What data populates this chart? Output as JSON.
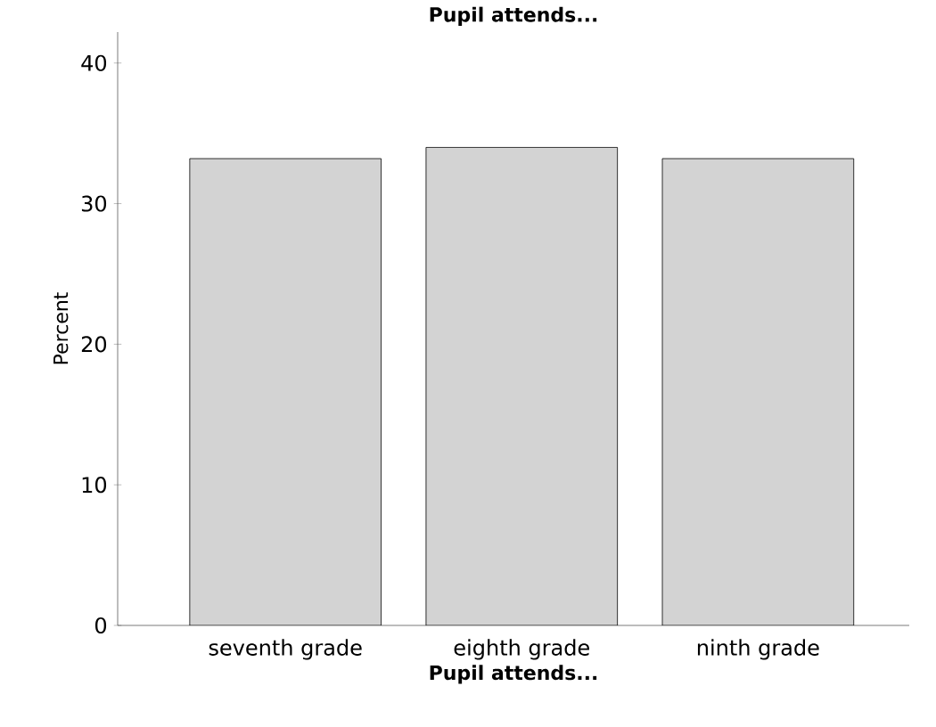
{
  "chart_data": {
    "type": "bar",
    "title": "Pupil attends...",
    "xlabel": "Pupil attends...",
    "ylabel": "Percent",
    "categories": [
      "seventh grade",
      "eighth grade",
      "ninth grade"
    ],
    "values": [
      33.2,
      34.0,
      33.2
    ],
    "color": "#d3d3d3",
    "ylim": [
      0,
      42.2
    ],
    "yticks": [
      0,
      10,
      20,
      30,
      40
    ],
    "grid": false
  }
}
